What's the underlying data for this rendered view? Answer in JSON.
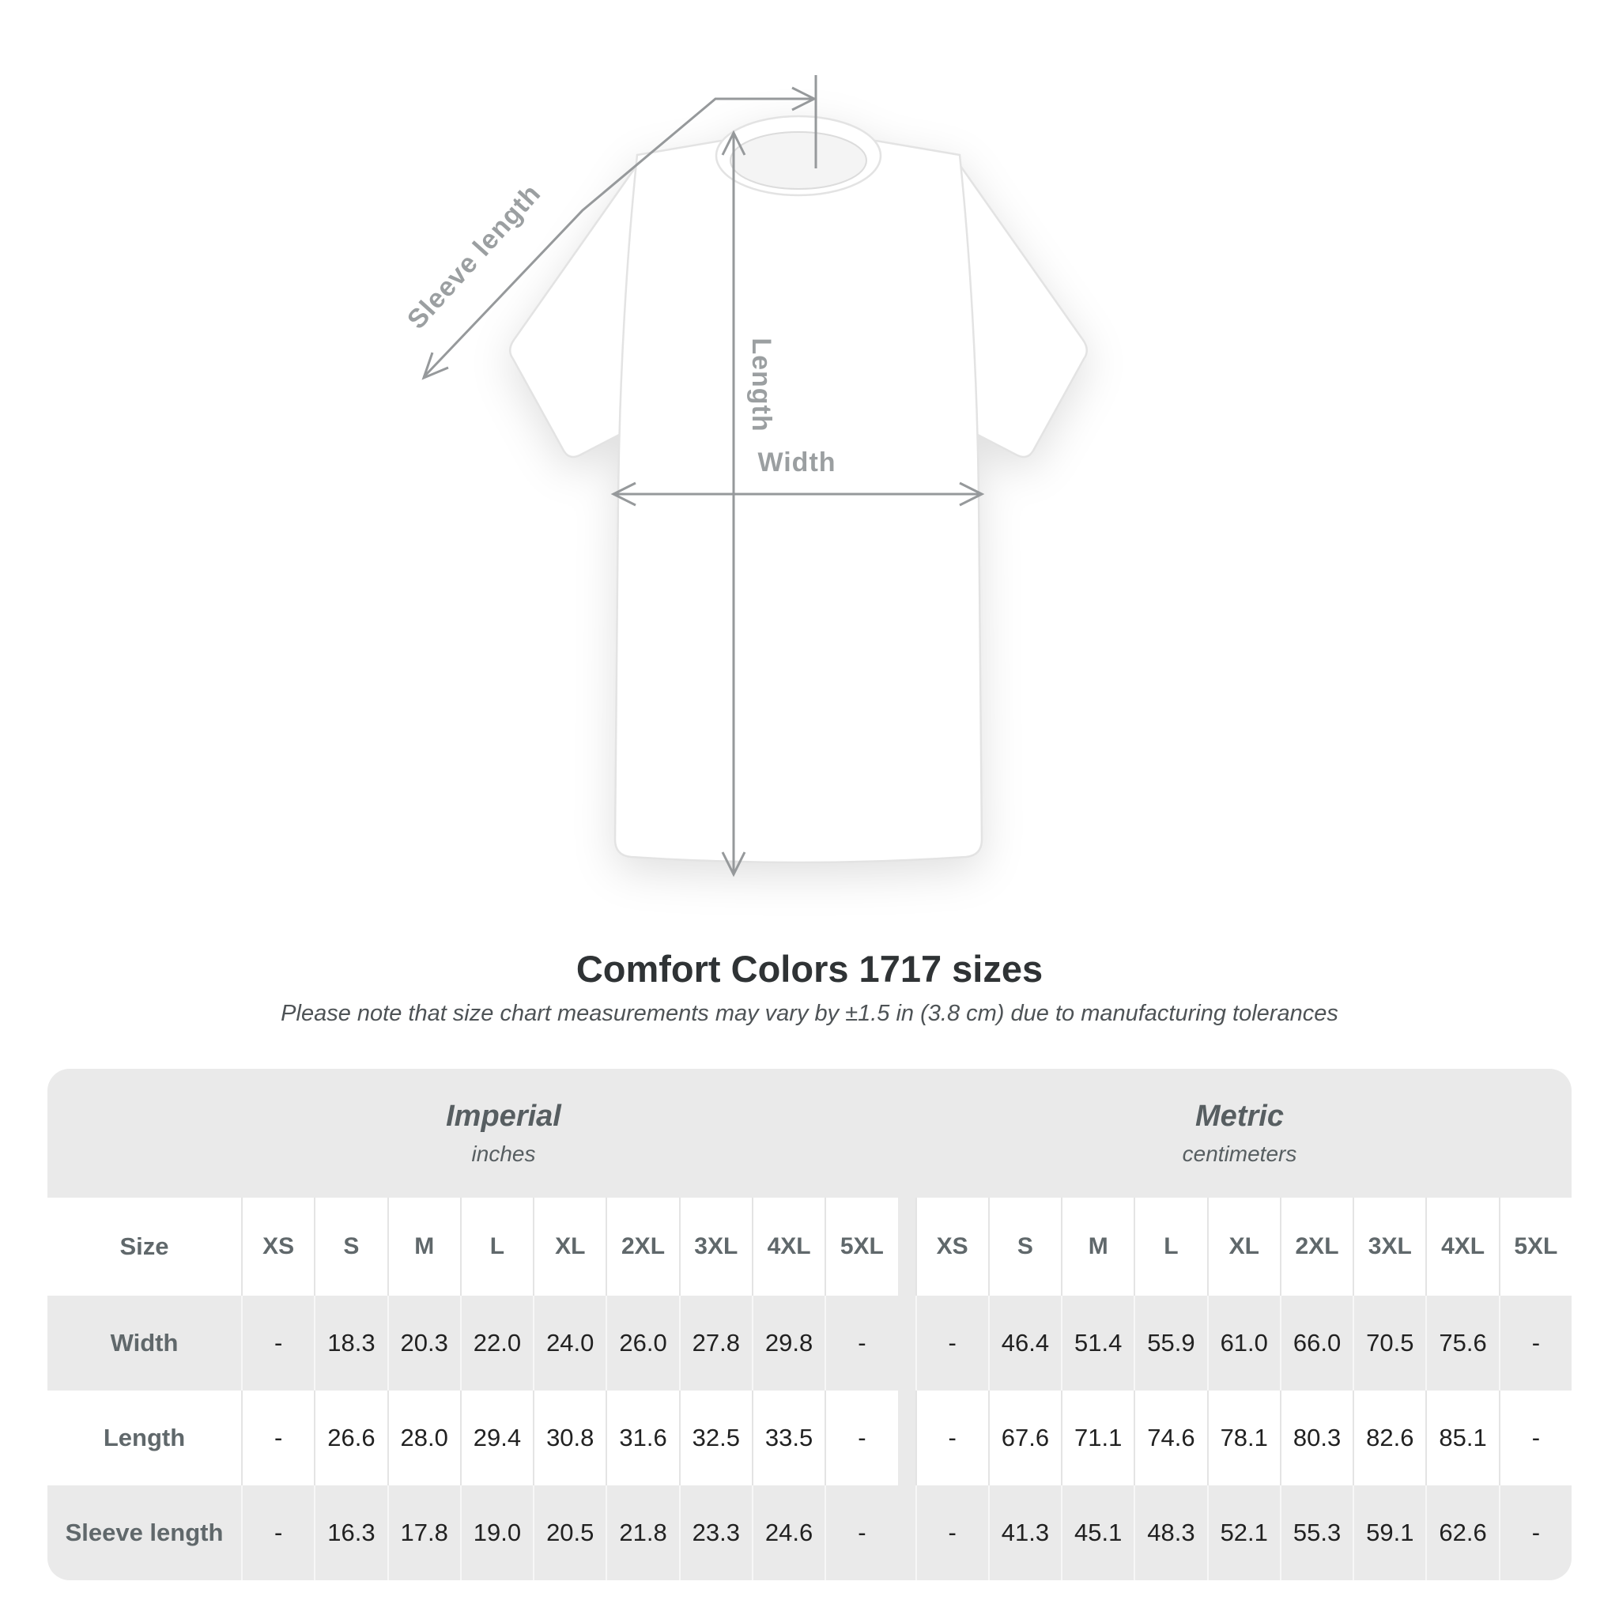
{
  "title": "Comfort Colors 1717 sizes",
  "subtitle": "Please note that size chart measurements may vary by ±1.5 in (3.8 cm) due to manufacturing tolerances",
  "diagram": {
    "sleeve_label": "Sleeve length",
    "length_label": "Length",
    "width_label": "Width"
  },
  "chart_data": {
    "type": "table",
    "title": "Comfort Colors 1717 sizes",
    "note": "Please note that size chart measurements may vary by ±1.5 in (3.8 cm) due to manufacturing tolerances",
    "size_header": "Size",
    "units": [
      {
        "name": "Imperial",
        "unit": "inches"
      },
      {
        "name": "Metric",
        "unit": "centimeters"
      }
    ],
    "sizes": [
      "XS",
      "S",
      "M",
      "L",
      "XL",
      "2XL",
      "3XL",
      "4XL",
      "5XL"
    ],
    "rows": [
      {
        "label": "Width",
        "imperial": [
          "-",
          "18.3",
          "20.3",
          "22.0",
          "24.0",
          "26.0",
          "27.8",
          "29.8",
          "-"
        ],
        "metric": [
          "-",
          "46.4",
          "51.4",
          "55.9",
          "61.0",
          "66.0",
          "70.5",
          "75.6",
          "-"
        ]
      },
      {
        "label": "Length",
        "imperial": [
          "-",
          "26.6",
          "28.0",
          "29.4",
          "30.8",
          "31.6",
          "32.5",
          "33.5",
          "-"
        ],
        "metric": [
          "-",
          "67.6",
          "71.1",
          "74.6",
          "78.1",
          "80.3",
          "82.6",
          "85.1",
          "-"
        ]
      },
      {
        "label": "Sleeve length",
        "imperial": [
          "-",
          "16.3",
          "17.8",
          "19.0",
          "20.5",
          "21.8",
          "23.3",
          "24.6",
          "-"
        ],
        "metric": [
          "-",
          "41.3",
          "45.1",
          "48.3",
          "52.1",
          "55.3",
          "59.1",
          "62.6",
          "-"
        ]
      }
    ]
  },
  "colors": {
    "band": "#eaeaea",
    "arrow": "#96999b",
    "diagram-label": "#9b9fa1",
    "value-text": "#212121",
    "header-text": "#60686b",
    "title-text": "#2f3335",
    "subtitle-text": "#4e5356",
    "unit-text": "#575e61"
  }
}
